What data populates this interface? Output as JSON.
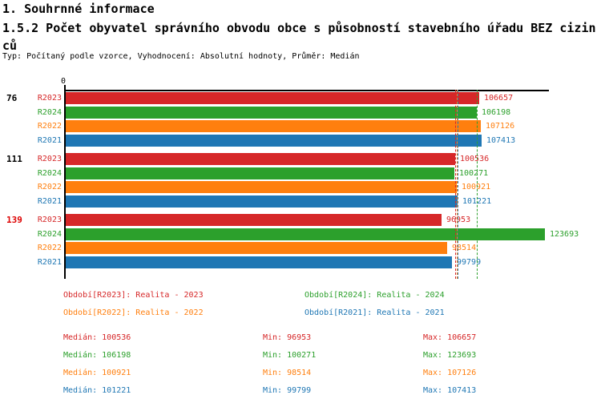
{
  "header": {
    "section_title": "1. Souhrnné informace",
    "chart_title": "1.5.2 Počet obyvatel správního obvodu obce s působností stavebního úřadu BEZ cizinců",
    "meta": "Typ: Počítaný podle vzorce, Vyhodnocení: Absolutní hodnoty, Průměr: Medián"
  },
  "chart_data": {
    "type": "bar",
    "orientation": "horizontal",
    "x_axis": {
      "origin_label": "0",
      "min": 0,
      "max": 123693,
      "grid": false
    },
    "series_order": [
      "R2023",
      "R2024",
      "R2022",
      "R2021"
    ],
    "series_colors": {
      "R2023": "#d62728",
      "R2024": "#2ca02c",
      "R2022": "#ff7f0e",
      "R2021": "#1f77b4"
    },
    "groups": [
      {
        "label": "76",
        "label_color": "#000000",
        "values": {
          "R2023": 106657,
          "R2024": 106198,
          "R2022": 107126,
          "R2021": 107413
        }
      },
      {
        "label": "111",
        "label_color": "#000000",
        "values": {
          "R2023": 100536,
          "R2024": 100271,
          "R2022": 100921,
          "R2021": 101221
        }
      },
      {
        "label": "139",
        "label_color": "#dd0000",
        "values": {
          "R2023": 96953,
          "R2024": 123693,
          "R2022": 98514,
          "R2021": 99799
        }
      }
    ],
    "median_lines": {
      "R2023": 100536,
      "R2024": 106198,
      "R2022": 100921,
      "R2021": 101221
    },
    "legend": [
      {
        "series": "R2023",
        "label": "Období[R2023]: Realita - 2023"
      },
      {
        "series": "R2024",
        "label": "Období[R2024]: Realita - 2024"
      },
      {
        "series": "R2022",
        "label": "Období[R2022]: Realita - 2022"
      },
      {
        "series": "R2021",
        "label": "Období[R2021]: Realita - 2021"
      }
    ],
    "stats": {
      "median_label": "Medián",
      "min_label": "Min",
      "max_label": "Max",
      "rows": [
        {
          "series": "R2023",
          "median": 100536,
          "min": 96953,
          "max": 106657
        },
        {
          "series": "R2024",
          "median": 106198,
          "min": 100271,
          "max": 123693
        },
        {
          "series": "R2022",
          "median": 100921,
          "min": 98514,
          "max": 107126
        },
        {
          "series": "R2021",
          "median": 101221,
          "min": 99799,
          "max": 107413
        }
      ]
    }
  }
}
